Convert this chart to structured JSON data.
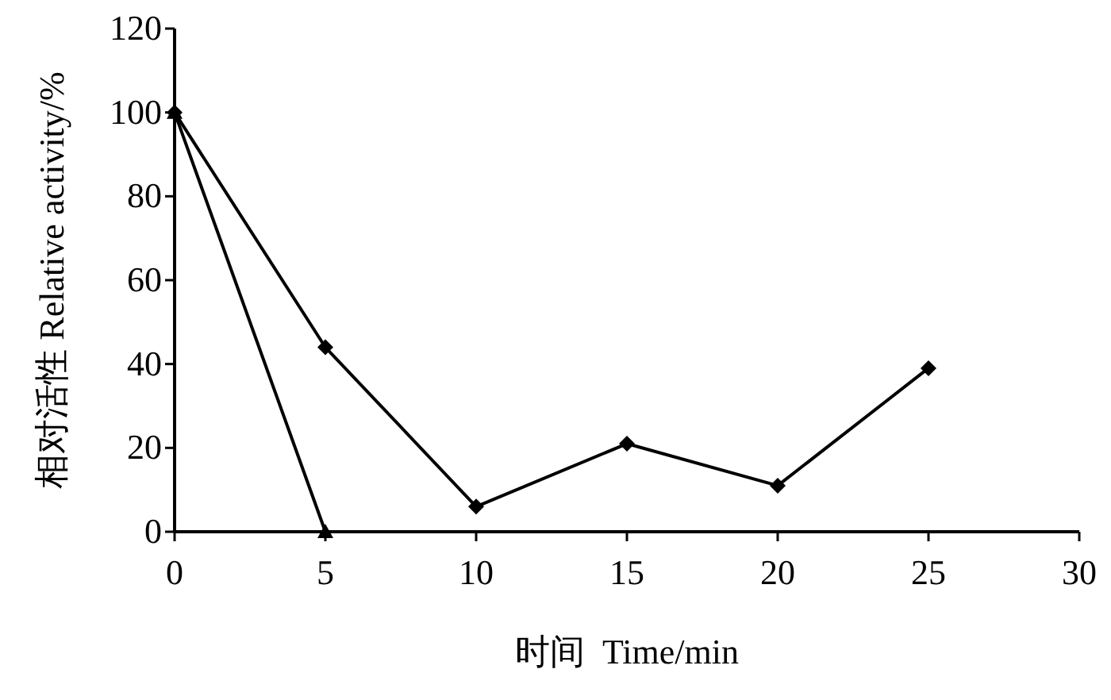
{
  "chart_data": {
    "type": "line",
    "xlabel": "时间  Time/min",
    "ylabel": "相对活性 Relative activity/%",
    "xlim": [
      0,
      30
    ],
    "xticks": [
      0,
      5,
      10,
      15,
      20,
      25,
      30
    ],
    "ylim": [
      0,
      120
    ],
    "yticks": [
      0,
      20,
      40,
      60,
      80,
      100,
      120
    ],
    "grid": false,
    "series": [
      {
        "color": "#000000",
        "marker": "diamond",
        "x": [
          0,
          5,
          10,
          15,
          20,
          25
        ],
        "values": [
          100,
          44,
          6,
          21,
          11,
          39
        ]
      },
      {
        "color": "#000000",
        "marker": "triangle",
        "x": [
          0,
          5
        ],
        "values": [
          100,
          0
        ]
      }
    ]
  }
}
